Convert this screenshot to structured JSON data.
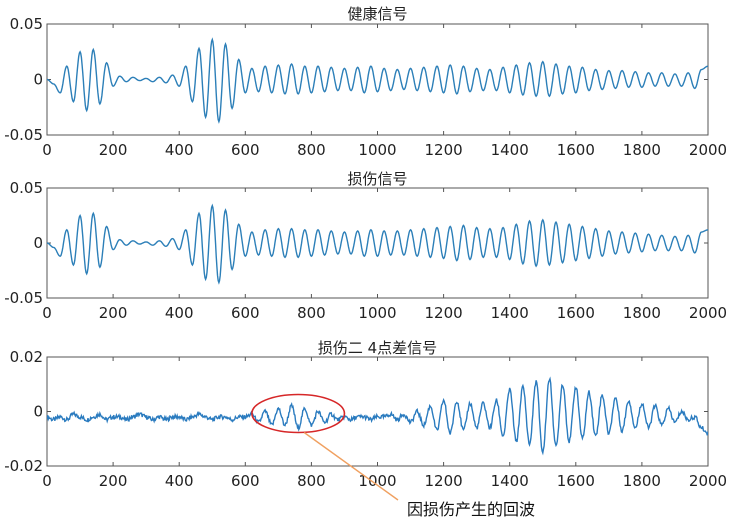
{
  "chart_data": [
    {
      "type": "line",
      "title": "健康信号",
      "xlim": [
        0,
        2000
      ],
      "ylim": [
        -0.05,
        0.05
      ],
      "x_ticks": [
        "0",
        "200",
        "400",
        "600",
        "800",
        "1000",
        "1200",
        "1400",
        "1600",
        "1800",
        "2000"
      ],
      "y_ticks": [
        "0.05",
        "0",
        "-0.05"
      ],
      "grid": false,
      "color": "#2c7fb8",
      "series": [
        {
          "x": [
            0,
            20,
            40,
            60,
            80,
            100,
            120,
            140,
            160,
            180,
            200,
            220,
            240,
            260,
            280,
            300,
            320,
            340,
            360,
            380,
            400,
            420,
            440,
            460,
            480,
            500,
            520,
            540,
            560,
            580,
            600,
            620,
            640,
            660,
            680,
            700,
            720,
            740,
            760,
            780,
            800,
            820,
            840,
            860,
            880,
            900,
            920,
            940,
            960,
            980,
            1000,
            1020,
            1040,
            1060,
            1080,
            1100,
            1120,
            1140,
            1160,
            1180,
            1200,
            1220,
            1240,
            1260,
            1280,
            1300,
            1320,
            1340,
            1360,
            1380,
            1400,
            1420,
            1440,
            1460,
            1480,
            1500,
            1520,
            1540,
            1560,
            1580,
            1600,
            1620,
            1640,
            1660,
            1680,
            1700,
            1720,
            1740,
            1760,
            1780,
            1800,
            1820,
            1840,
            1860,
            1880,
            1900,
            1920,
            1940,
            1960,
            1980,
            2000
          ],
          "y": [
            0,
            -0.004,
            -0.012,
            0.012,
            -0.02,
            0.025,
            -0.028,
            0.027,
            -0.022,
            0.015,
            -0.006,
            0.003,
            -0.002,
            0.002,
            -0.001,
            0.001,
            -0.002,
            0.002,
            -0.003,
            0.004,
            -0.006,
            0.012,
            -0.02,
            0.028,
            -0.034,
            0.036,
            -0.038,
            0.032,
            -0.026,
            0.018,
            -0.012,
            0.01,
            -0.011,
            0.012,
            -0.012,
            0.013,
            -0.013,
            0.014,
            -0.013,
            0.012,
            -0.012,
            0.012,
            -0.011,
            0.011,
            -0.01,
            0.01,
            -0.01,
            0.011,
            -0.012,
            0.012,
            -0.011,
            0.01,
            -0.01,
            0.009,
            -0.009,
            0.01,
            -0.01,
            0.011,
            -0.011,
            0.012,
            -0.012,
            0.013,
            -0.013,
            0.012,
            -0.011,
            0.01,
            -0.01,
            0.009,
            -0.01,
            0.011,
            -0.012,
            0.013,
            -0.014,
            0.015,
            -0.015,
            0.016,
            -0.015,
            0.014,
            -0.013,
            0.012,
            -0.012,
            0.011,
            -0.01,
            0.009,
            -0.009,
            0.008,
            -0.008,
            0.008,
            -0.007,
            0.007,
            -0.007,
            0.006,
            -0.006,
            0.006,
            -0.006,
            0.005,
            -0.006,
            0.006,
            -0.008,
            0.009,
            0.012
          ]
        }
      ]
    },
    {
      "type": "line",
      "title": "损伤信号",
      "xlim": [
        0,
        2000
      ],
      "ylim": [
        -0.05,
        0.05
      ],
      "x_ticks": [
        "0",
        "200",
        "400",
        "600",
        "800",
        "1000",
        "1200",
        "1400",
        "1600",
        "1800",
        "2000"
      ],
      "y_ticks": [
        "0.05",
        "0",
        "-0.05"
      ],
      "grid": false,
      "color": "#2c7fb8",
      "series": [
        {
          "x": [
            0,
            20,
            40,
            60,
            80,
            100,
            120,
            140,
            160,
            180,
            200,
            220,
            240,
            260,
            280,
            300,
            320,
            340,
            360,
            380,
            400,
            420,
            440,
            460,
            480,
            500,
            520,
            540,
            560,
            580,
            600,
            620,
            640,
            660,
            680,
            700,
            720,
            740,
            760,
            780,
            800,
            820,
            840,
            860,
            880,
            900,
            920,
            940,
            960,
            980,
            1000,
            1020,
            1040,
            1060,
            1080,
            1100,
            1120,
            1140,
            1160,
            1180,
            1200,
            1220,
            1240,
            1260,
            1280,
            1300,
            1320,
            1340,
            1360,
            1380,
            1400,
            1420,
            1440,
            1460,
            1480,
            1500,
            1520,
            1540,
            1560,
            1580,
            1600,
            1620,
            1640,
            1660,
            1680,
            1700,
            1720,
            1740,
            1760,
            1780,
            1800,
            1820,
            1840,
            1860,
            1880,
            1900,
            1920,
            1940,
            1960,
            1980,
            2000
          ],
          "y": [
            0,
            -0.004,
            -0.012,
            0.012,
            -0.02,
            0.025,
            -0.028,
            0.027,
            -0.022,
            0.015,
            -0.006,
            0.003,
            -0.002,
            0.002,
            -0.001,
            0.001,
            -0.002,
            0.002,
            -0.003,
            0.004,
            -0.006,
            0.012,
            -0.02,
            0.027,
            -0.033,
            0.034,
            -0.036,
            0.03,
            -0.024,
            0.017,
            -0.012,
            0.01,
            -0.011,
            0.012,
            -0.012,
            0.013,
            -0.013,
            0.013,
            -0.013,
            0.012,
            -0.012,
            0.012,
            -0.011,
            0.011,
            -0.01,
            0.01,
            -0.01,
            0.011,
            -0.012,
            0.012,
            -0.012,
            0.011,
            -0.011,
            0.011,
            -0.011,
            0.012,
            -0.012,
            0.013,
            -0.013,
            0.014,
            -0.014,
            0.015,
            -0.016,
            0.016,
            -0.015,
            0.014,
            -0.013,
            0.013,
            -0.013,
            0.014,
            -0.015,
            0.017,
            -0.019,
            0.02,
            -0.021,
            0.021,
            -0.02,
            0.019,
            -0.018,
            0.017,
            -0.016,
            0.015,
            -0.014,
            0.013,
            -0.012,
            0.011,
            -0.01,
            0.01,
            -0.009,
            0.009,
            -0.008,
            0.008,
            -0.007,
            0.007,
            -0.007,
            0.006,
            -0.007,
            0.007,
            -0.009,
            0.01,
            0.012
          ]
        }
      ]
    },
    {
      "type": "line",
      "title": "损伤二 4点差信号",
      "xlim": [
        0,
        2000
      ],
      "ylim": [
        -0.02,
        0.02
      ],
      "x_ticks": [
        "0",
        "200",
        "400",
        "600",
        "800",
        "1000",
        "1200",
        "1400",
        "1600",
        "1800",
        "2000"
      ],
      "y_ticks": [
        "0.02",
        "0",
        "-0.02"
      ],
      "grid": false,
      "color": "#2a7bbf",
      "annotation": {
        "text": "因损伤产生的回波",
        "highlight_x_range": [
          620,
          900
        ],
        "ellipse_color": "#d62728",
        "arrow_color": "#f0a060"
      },
      "series": [
        {
          "x": [
            0,
            20,
            40,
            60,
            80,
            100,
            120,
            140,
            160,
            180,
            200,
            220,
            240,
            260,
            280,
            300,
            320,
            340,
            360,
            380,
            400,
            420,
            440,
            460,
            480,
            500,
            520,
            540,
            560,
            580,
            600,
            620,
            640,
            660,
            680,
            700,
            720,
            740,
            760,
            780,
            800,
            820,
            840,
            860,
            880,
            900,
            920,
            940,
            960,
            980,
            1000,
            1020,
            1040,
            1060,
            1080,
            1100,
            1120,
            1140,
            1160,
            1180,
            1200,
            1220,
            1240,
            1260,
            1280,
            1300,
            1320,
            1340,
            1360,
            1380,
            1400,
            1420,
            1440,
            1460,
            1480,
            1500,
            1520,
            1540,
            1560,
            1580,
            1600,
            1620,
            1640,
            1660,
            1680,
            1700,
            1720,
            1740,
            1760,
            1780,
            1800,
            1820,
            1840,
            1860,
            1880,
            1900,
            1920,
            1940,
            1960,
            1980,
            2000
          ],
          "y": [
            -0.002,
            -0.003,
            -0.002,
            -0.003,
            -0.001,
            -0.002,
            -0.003,
            -0.002,
            -0.001,
            -0.003,
            -0.002,
            -0.002,
            -0.003,
            -0.002,
            -0.001,
            -0.002,
            -0.003,
            -0.002,
            -0.003,
            -0.002,
            -0.002,
            -0.003,
            -0.002,
            -0.001,
            -0.002,
            -0.003,
            -0.002,
            -0.002,
            -0.003,
            -0.002,
            -0.002,
            -0.001,
            -0.004,
            0.0,
            -0.005,
            0.001,
            -0.005,
            0.002,
            -0.006,
            0.001,
            -0.005,
            0.0,
            -0.004,
            -0.001,
            -0.003,
            -0.002,
            -0.003,
            -0.002,
            -0.002,
            -0.003,
            -0.002,
            -0.002,
            -0.001,
            -0.003,
            -0.001,
            -0.004,
            0.0,
            -0.005,
            0.002,
            -0.007,
            0.004,
            -0.008,
            0.004,
            -0.007,
            0.003,
            -0.006,
            0.003,
            -0.006,
            0.004,
            -0.009,
            0.008,
            -0.011,
            0.009,
            -0.012,
            0.011,
            -0.015,
            0.012,
            -0.013,
            0.01,
            -0.011,
            0.009,
            -0.01,
            0.007,
            -0.009,
            0.006,
            -0.008,
            0.005,
            -0.007,
            0.004,
            -0.006,
            0.003,
            -0.006,
            0.002,
            -0.005,
            0.001,
            -0.004,
            0.0,
            -0.003,
            -0.002,
            -0.006,
            -0.008
          ]
        }
      ]
    }
  ]
}
